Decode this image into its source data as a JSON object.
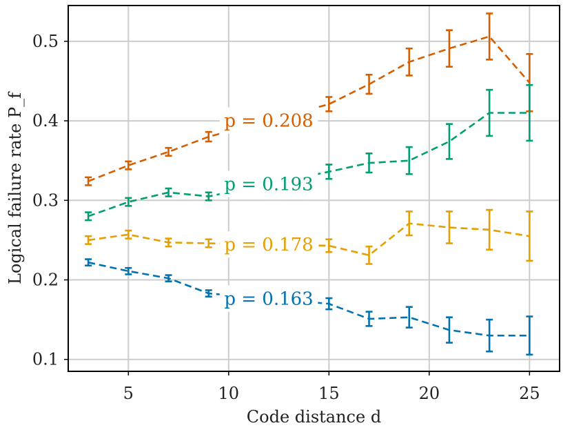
{
  "chart_data": {
    "type": "line",
    "title": "",
    "xlabel": "Code distance d",
    "ylabel": "Logical failure rate P_f",
    "xlim": [
      2,
      26.5
    ],
    "ylim": [
      0.085,
      0.545
    ],
    "xticks": [
      5,
      10,
      15,
      20,
      25
    ],
    "yticks": [
      0.1,
      0.2,
      0.3,
      0.4,
      0.5
    ],
    "xtick_labels": [
      "5",
      "10",
      "15",
      "20",
      "25"
    ],
    "ytick_labels": [
      "0.1",
      "0.2",
      "0.3",
      "0.4",
      "0.5"
    ],
    "grid": true,
    "line_style": "dashed",
    "series": [
      {
        "name": "p = 0.208",
        "label": "p = 0.208",
        "color": "#d55e00",
        "x": [
          3,
          5,
          7,
          9,
          15,
          17,
          19,
          21,
          23,
          25
        ],
        "values": [
          0.324,
          0.344,
          0.361,
          0.38,
          0.421,
          0.446,
          0.474,
          0.491,
          0.506,
          0.448
        ],
        "errors": [
          0.005,
          0.005,
          0.005,
          0.006,
          0.009,
          0.012,
          0.017,
          0.023,
          0.029,
          0.036
        ]
      },
      {
        "name": "p = 0.193",
        "label": "p = 0.193",
        "color": "#009e73",
        "x": [
          3,
          5,
          7,
          9,
          15,
          17,
          19,
          21,
          23,
          25
        ],
        "values": [
          0.28,
          0.298,
          0.31,
          0.305,
          0.336,
          0.347,
          0.35,
          0.374,
          0.41,
          0.41
        ],
        "errors": [
          0.005,
          0.005,
          0.005,
          0.005,
          0.009,
          0.012,
          0.017,
          0.022,
          0.029,
          0.035
        ]
      },
      {
        "name": "p = 0.178",
        "label": "p = 0.178",
        "color": "#e69f00",
        "x": [
          3,
          5,
          7,
          9,
          15,
          17,
          19,
          21,
          23,
          25
        ],
        "values": [
          0.25,
          0.257,
          0.247,
          0.246,
          0.243,
          0.231,
          0.271,
          0.266,
          0.263,
          0.255
        ],
        "errors": [
          0.005,
          0.005,
          0.005,
          0.005,
          0.008,
          0.011,
          0.015,
          0.02,
          0.025,
          0.031
        ]
      },
      {
        "name": "p = 0.163",
        "label": "p = 0.163",
        "color": "#0072b2",
        "x": [
          3,
          5,
          7,
          9,
          15,
          17,
          19,
          21,
          23,
          25
        ],
        "values": [
          0.222,
          0.211,
          0.202,
          0.183,
          0.17,
          0.151,
          0.153,
          0.137,
          0.13,
          0.13
        ],
        "errors": [
          0.004,
          0.004,
          0.004,
          0.004,
          0.007,
          0.009,
          0.013,
          0.016,
          0.02,
          0.024
        ]
      }
    ]
  }
}
